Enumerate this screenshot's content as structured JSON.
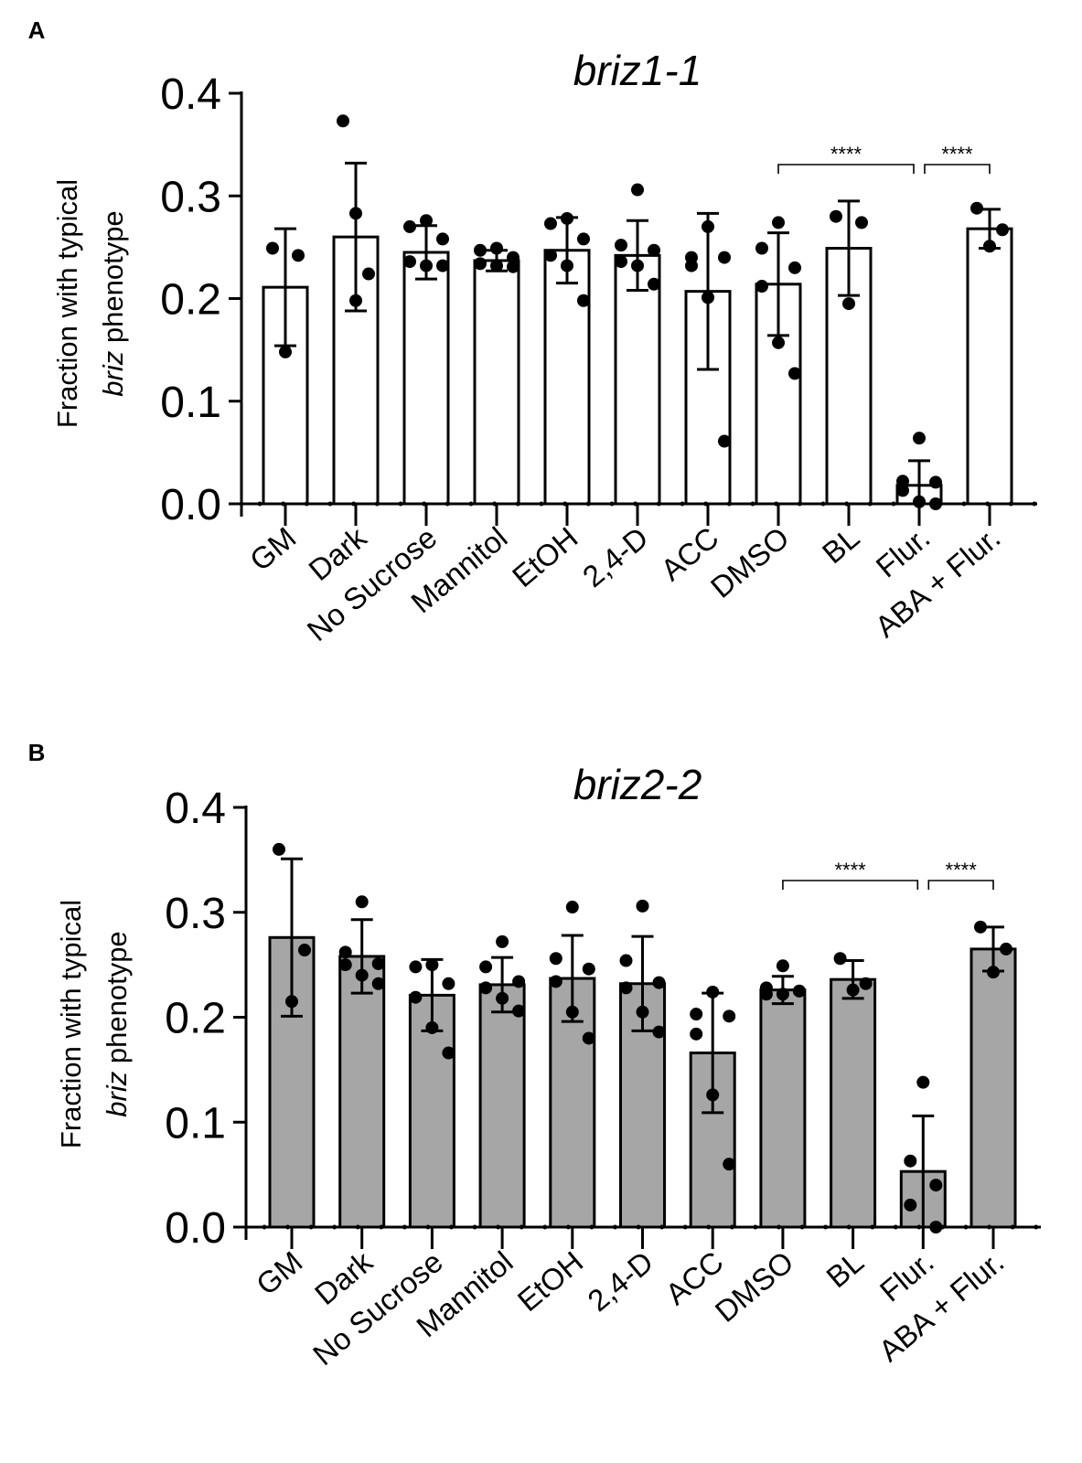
{
  "chart_data": [
    {
      "panel_label": "A",
      "type": "bar",
      "title": "briz1-1",
      "ylabel_line1": "Fraction with typical",
      "ylabel_italic": "briz",
      "ylabel_rest": " phenotype",
      "ylim": [
        0,
        0.4
      ],
      "yticks": [
        "0.0",
        "0.1",
        "0.2",
        "0.3",
        "0.4"
      ],
      "bar_color": "#ffffff",
      "categories": [
        "GM",
        "Dark",
        "No Sucrose",
        "Mannitol",
        "EtOH",
        "2,4-D",
        "ACC",
        "DMSO",
        "BL",
        "Flur.",
        "ABA + Flur."
      ],
      "values": [
        0.211,
        0.26,
        0.245,
        0.237,
        0.247,
        0.242,
        0.207,
        0.214,
        0.249,
        0.018,
        0.268
      ],
      "errors": [
        0.057,
        0.072,
        0.026,
        0.01,
        0.032,
        0.034,
        0.076,
        0.05,
        0.046,
        0.024,
        0.019
      ],
      "points": [
        [
          0.249,
          0.242,
          0.148
        ],
        [
          0.373,
          0.283,
          0.224,
          0.198
        ],
        [
          0.276,
          0.27,
          0.258,
          0.236,
          0.232,
          0.232
        ],
        [
          0.249,
          0.247,
          0.24,
          0.234,
          0.232,
          0.231
        ],
        [
          0.278,
          0.273,
          0.258,
          0.242,
          0.232,
          0.198
        ],
        [
          0.306,
          0.252,
          0.247,
          0.236,
          0.232,
          0.214
        ],
        [
          0.27,
          0.24,
          0.24,
          0.232,
          0.201,
          0.061
        ],
        [
          0.274,
          0.249,
          0.23,
          0.212,
          0.157,
          0.127
        ],
        [
          0.28,
          0.274,
          0.195
        ],
        [
          0.064,
          0.022,
          0.021,
          0.013,
          0.002,
          0.0
        ],
        [
          0.288,
          0.267,
          0.251
        ]
      ],
      "significance": [
        {
          "from": "DMSO",
          "to": "Flur.",
          "label": "****"
        },
        {
          "from": "Flur.",
          "to": "ABA + Flur.",
          "label": "****"
        }
      ]
    },
    {
      "panel_label": "B",
      "type": "bar",
      "title": "briz2-2",
      "ylabel_line1": "Fraction with typical",
      "ylabel_italic": "briz",
      "ylabel_rest": " phenotype",
      "ylim": [
        0,
        0.4
      ],
      "yticks": [
        "0.0",
        "0.1",
        "0.2",
        "0.3",
        "0.4"
      ],
      "bar_color": "#a6a6a6",
      "categories": [
        "GM",
        "Dark",
        "No Sucrose",
        "Mannitol",
        "EtOH",
        "2,4-D",
        "ACC",
        "DMSO",
        "BL",
        "Flur.",
        "ABA + Flur."
      ],
      "values": [
        0.276,
        0.258,
        0.221,
        0.231,
        0.237,
        0.232,
        0.166,
        0.226,
        0.236,
        0.053,
        0.265
      ],
      "errors": [
        0.075,
        0.035,
        0.034,
        0.026,
        0.041,
        0.045,
        0.057,
        0.013,
        0.018,
        0.053,
        0.021
      ],
      "points": [
        [
          0.36,
          0.264,
          0.215
        ],
        [
          0.31,
          0.262,
          0.251,
          0.25,
          0.24,
          0.232
        ],
        [
          0.25,
          0.248,
          0.232,
          0.219,
          0.19,
          0.166
        ],
        [
          0.272,
          0.248,
          0.234,
          0.228,
          0.218,
          0.206
        ],
        [
          0.305,
          0.256,
          0.246,
          0.234,
          0.205,
          0.18
        ],
        [
          0.306,
          0.254,
          0.233,
          0.228,
          0.205,
          0.186
        ],
        [
          0.224,
          0.203,
          0.201,
          0.184,
          0.126,
          0.06
        ],
        [
          0.249,
          0.228,
          0.225,
          0.222,
          0.222,
          0.225
        ],
        [
          0.256,
          0.232,
          0.226
        ],
        [
          0.138,
          0.063,
          0.04,
          0.021,
          0.0
        ],
        [
          0.286,
          0.265,
          0.243
        ]
      ],
      "significance": [
        {
          "from": "DMSO",
          "to": "Flur.",
          "label": "****"
        },
        {
          "from": "Flur.",
          "to": "ABA + Flur.",
          "label": "****"
        }
      ]
    }
  ]
}
